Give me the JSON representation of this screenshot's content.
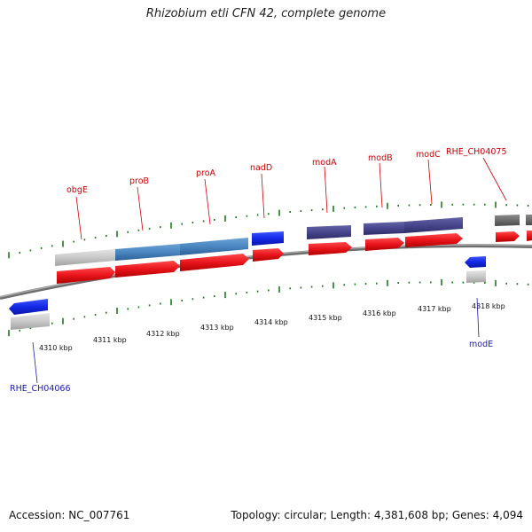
{
  "title": "Rhizobium etli CFN 42, complete genome",
  "footer": {
    "accession": "Accession: NC_007761",
    "stats": "Topology: circular; Length: 4,381,608 bp; Genes: 4,094"
  },
  "colors": {
    "cds_red": "#e8141b",
    "gene_blue": "#1428e6",
    "gene_steel": "#4a86c0",
    "gene_slate": "#47468c",
    "gene_grey": "#c8c8c8",
    "gene_dark": "#6c6c6c",
    "backbone": "#8a8a8a",
    "tick_green": "#1b7a1b"
  },
  "scale": {
    "tick_labels": [
      "4310 kbp",
      "4311 kbp",
      "4312 kbp",
      "4313 kbp",
      "4314 kbp",
      "4315 kbp",
      "4316 kbp",
      "4317 kbp",
      "4318 kbp"
    ]
  },
  "genes_forward": [
    {
      "label": "obgE"
    },
    {
      "label": "proB"
    },
    {
      "label": "proA"
    },
    {
      "label": "nadD"
    },
    {
      "label": "modA"
    },
    {
      "label": "modB"
    },
    {
      "label": "modC"
    },
    {
      "label": "RHE_CH04075"
    }
  ],
  "genes_reverse": [
    {
      "label": "RHE_CH04066"
    },
    {
      "label": "modE"
    }
  ]
}
